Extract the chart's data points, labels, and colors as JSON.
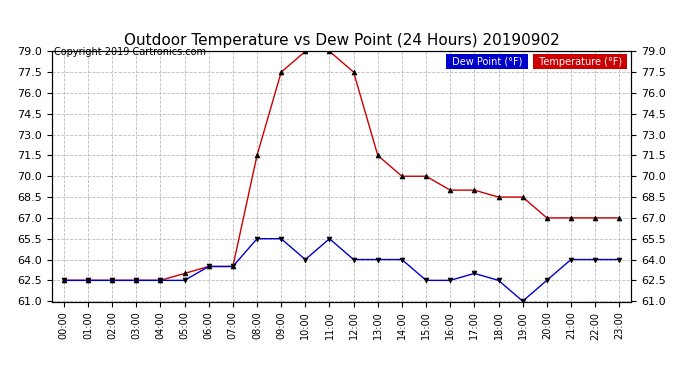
{
  "title": "Outdoor Temperature vs Dew Point (24 Hours) 20190902",
  "copyright": "Copyright 2019 Cartronics.com",
  "hours": [
    "00:00",
    "01:00",
    "02:00",
    "03:00",
    "04:00",
    "05:00",
    "06:00",
    "07:00",
    "08:00",
    "09:00",
    "10:00",
    "11:00",
    "12:00",
    "13:00",
    "14:00",
    "15:00",
    "16:00",
    "17:00",
    "18:00",
    "19:00",
    "20:00",
    "21:00",
    "22:00",
    "23:00"
  ],
  "temperature": [
    62.5,
    62.5,
    62.5,
    62.5,
    62.5,
    63.0,
    63.5,
    63.5,
    71.5,
    77.5,
    79.0,
    79.0,
    77.5,
    71.5,
    70.0,
    70.0,
    69.0,
    69.0,
    68.5,
    68.5,
    67.0,
    67.0,
    67.0,
    67.0
  ],
  "dew_point": [
    62.5,
    62.5,
    62.5,
    62.5,
    62.5,
    62.5,
    63.5,
    63.5,
    65.5,
    65.5,
    64.0,
    65.5,
    64.0,
    64.0,
    64.0,
    62.5,
    62.5,
    63.0,
    62.5,
    61.0,
    62.5,
    64.0,
    64.0,
    64.0
  ],
  "temp_color": "#cc0000",
  "dew_color": "#0000cc",
  "ylim_min": 61.0,
  "ylim_max": 79.0,
  "yticks": [
    61.0,
    62.5,
    64.0,
    65.5,
    67.0,
    68.5,
    70.0,
    71.5,
    73.0,
    74.5,
    76.0,
    77.5,
    79.0
  ],
  "bg_color": "#ffffff",
  "grid_color": "#bbbbbb",
  "legend_dew_bg": "#0000cc",
  "legend_temp_bg": "#cc0000",
  "legend_text_color": "#ffffff",
  "title_fontsize": 11,
  "copyright_fontsize": 7,
  "tick_fontsize": 8,
  "xtick_fontsize": 7
}
